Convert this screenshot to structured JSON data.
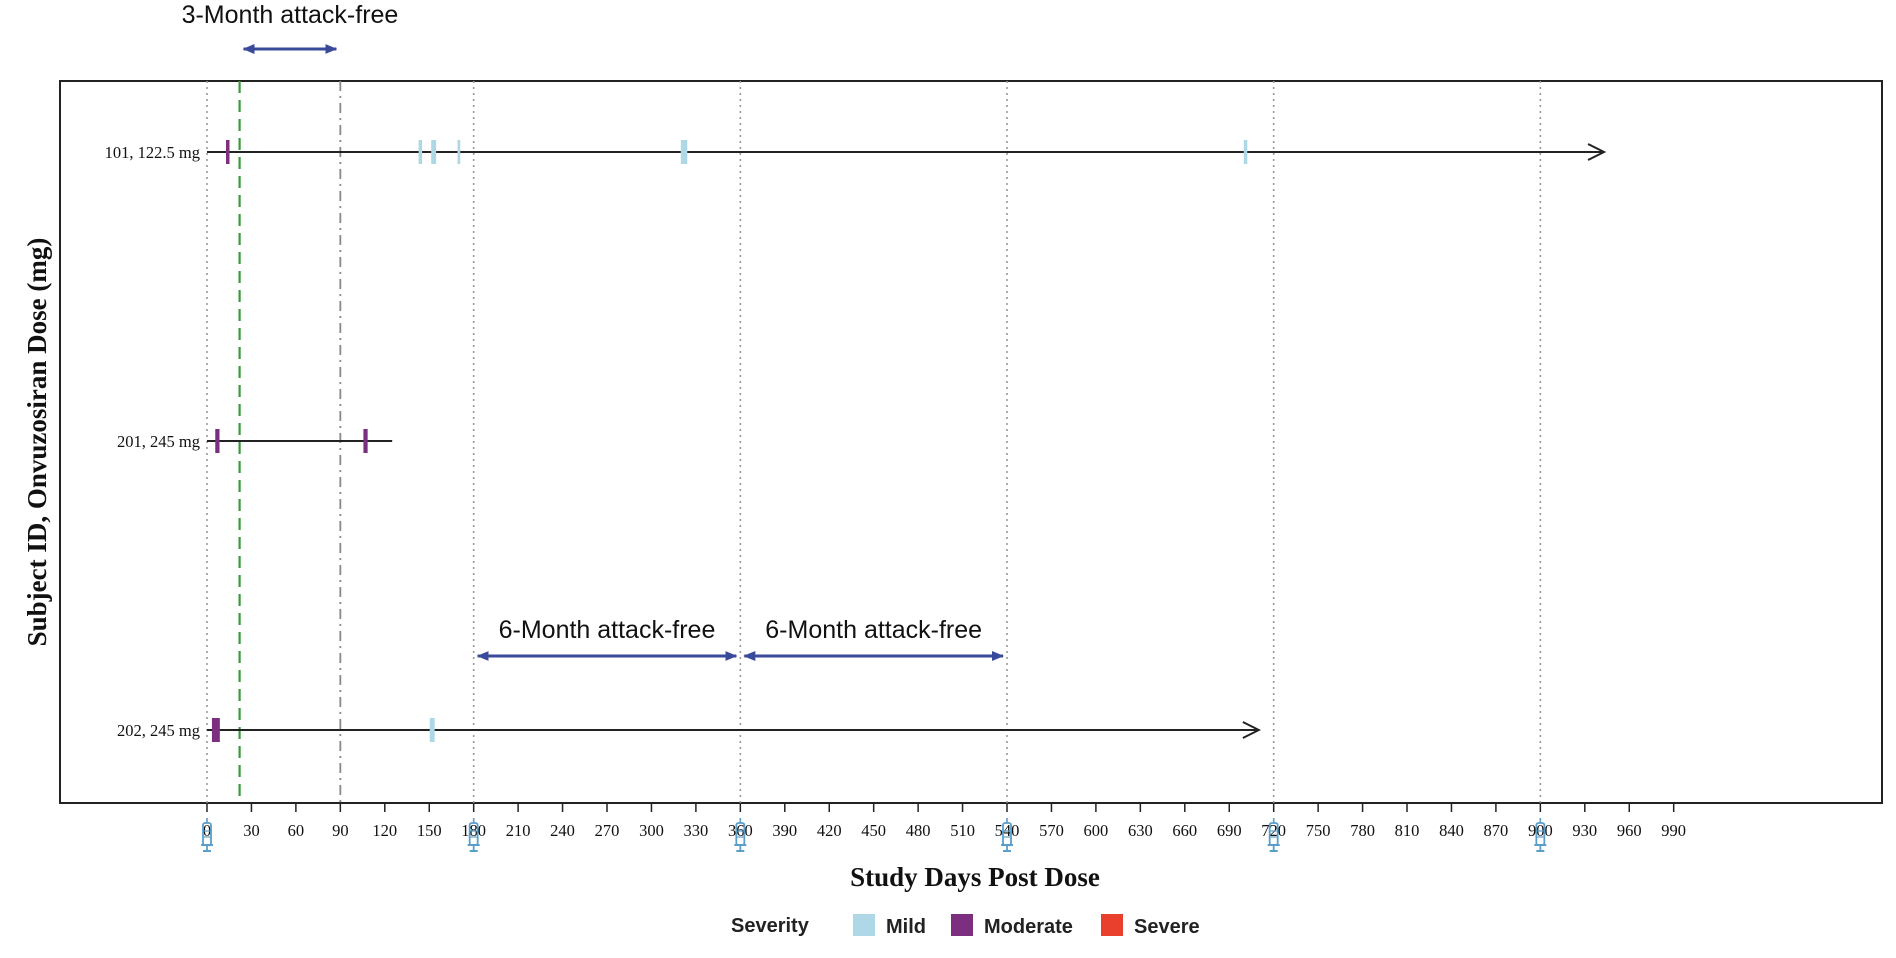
{
  "chart_data": {
    "type": "swimmer",
    "ylabel": "Subject ID, Onvuzosiran Dose (mg)",
    "xlabel": "Study Days Post Dose",
    "xlim": [
      -5,
      1005
    ],
    "x_ticks": [
      0,
      30,
      60,
      90,
      120,
      150,
      180,
      210,
      240,
      270,
      300,
      330,
      360,
      390,
      420,
      450,
      480,
      510,
      540,
      570,
      600,
      630,
      660,
      690,
      720,
      750,
      780,
      810,
      840,
      870,
      900,
      930,
      960,
      990
    ],
    "dose_days": [
      0,
      180,
      360,
      540,
      720,
      900
    ],
    "dotted_reference_days": [
      0,
      180,
      360,
      540,
      720,
      900
    ],
    "green_dashed_day": 22,
    "gray_dashdot_day": 90,
    "subjects": [
      {
        "label": "101, 122.5 mg",
        "end_day": 943,
        "ongoing": true,
        "attacks": [
          {
            "day": 14,
            "severity": "Moderate",
            "duration": 1
          },
          {
            "day": 144,
            "severity": "Mild",
            "duration": 1
          },
          {
            "day": 153,
            "severity": "Mild",
            "duration": 2
          },
          {
            "day": 170,
            "severity": "Mild",
            "duration": 0.5
          },
          {
            "day": 322,
            "severity": "Mild",
            "duration": 3
          },
          {
            "day": 701,
            "severity": "Mild",
            "duration": 1
          }
        ]
      },
      {
        "label": "201, 245 mg",
        "end_day": 125,
        "ongoing": false,
        "attacks": [
          {
            "day": 7,
            "severity": "Moderate",
            "duration": 1.5
          },
          {
            "day": 107,
            "severity": "Moderate",
            "duration": 1.5
          }
        ]
      },
      {
        "label": "202, 245 mg",
        "end_day": 710,
        "ongoing": true,
        "attacks": [
          {
            "day": 6,
            "severity": "Moderate",
            "duration": 4
          },
          {
            "day": 152,
            "severity": "Mild",
            "duration": 2
          }
        ]
      }
    ],
    "annotations": [
      {
        "text": "3-Month attack-free",
        "from": 22,
        "to": 90,
        "row": "top"
      },
      {
        "text": "6-Month attack-free",
        "from": 180,
        "to": 360,
        "row": "202-above"
      },
      {
        "text": "6-Month attack-free",
        "from": 360,
        "to": 540,
        "row": "202-above"
      }
    ],
    "legend": {
      "title": "Severity",
      "placement": "bottom",
      "items": [
        {
          "label": "Mild",
          "color": "#aed8e6"
        },
        {
          "label": "Moderate",
          "color": "#7b2f7e"
        },
        {
          "label": "Severe",
          "color": "#e8402c"
        }
      ]
    },
    "colors": {
      "annotation_arrow": "#3a4a9a",
      "green_dashed": "#3a9a3a",
      "gray_dashdot": "#888888",
      "syringe_icon": "#5a9ec9"
    }
  }
}
